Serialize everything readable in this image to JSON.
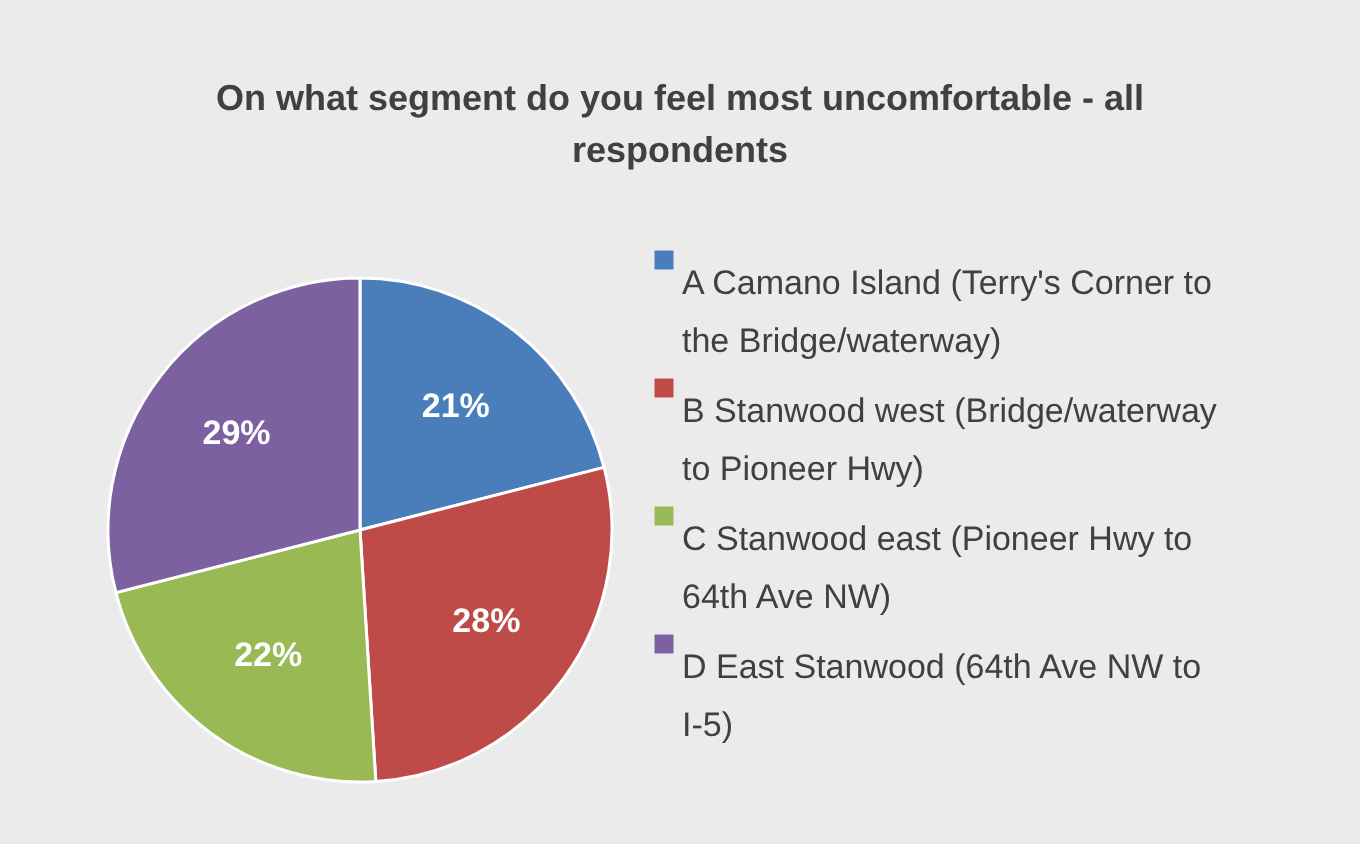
{
  "chart_data": {
    "type": "pie",
    "title": "On what segment do you feel most uncomfortable - all respondents",
    "categories": [
      "A Camano Island (Terry's Corner to the Bridge/waterway)",
      "B Stanwood west (Bridge/waterway to Pioneer Hwy)",
      "C Stanwood east (Pioneer Hwy to 64th Ave NW)",
      "D East Stanwood (64th Ave NW to I-5)"
    ],
    "values": [
      21,
      28,
      22,
      29
    ],
    "value_labels": [
      "21%",
      "28%",
      "22%",
      "29%"
    ],
    "colors": [
      "#4a7ebb",
      "#be4b48",
      "#98b954",
      "#7d60a0"
    ],
    "legend": "right"
  }
}
